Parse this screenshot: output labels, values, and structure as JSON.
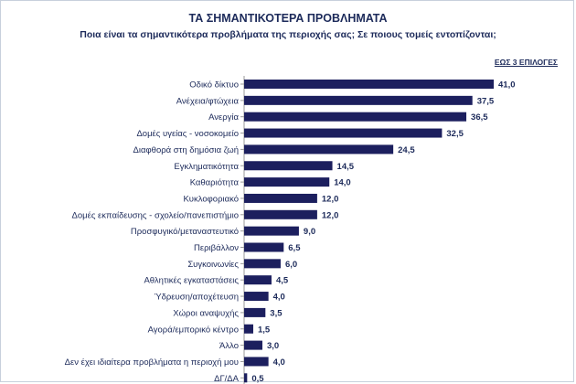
{
  "header": {
    "title": "ΤΑ ΣΗΜΑΝΤΙΚΟΤΕΡΑ ΠΡΟΒΛΗΜΑΤΑ",
    "subtitle": "Ποια είναι τα σημαντικότερα προβλήματα της περιοχής σας; Σε ποιους τομείς εντοπίζονται;",
    "note": "ΕΩΣ 3 ΕΠΙΛΟΓΕΣ"
  },
  "colors": {
    "bar": "#1c1f5e",
    "text": "#1c2a5a",
    "axis": "#9a9a9a"
  },
  "chart_data": {
    "type": "bar",
    "orientation": "horizontal",
    "categories": [
      "Οδικό δίκτυο",
      "Ανέχεια/φτώχεια",
      "Ανεργία",
      "Δομές υγείας - νοσοκομείο",
      "Διαφθορά στη δημόσια ζωή",
      "Εγκληματικότητα",
      "Καθαριότητα",
      "Κυκλοφοριακό",
      "Δομές εκπαίδευσης - σχολείο/πανεπιστήμιο",
      "Προσφυγικό/μεταναστευτικό",
      "Περιβάλλον",
      "Συγκοινωνίες",
      "Αθλητικές εγκαταστάσεις",
      "Ύδρευση/αποχέτευση",
      "Χώροι αναψυχής",
      "Αγορά/εμπορικό κέντρο",
      "Άλλο",
      "Δεν έχει ιδιαίτερα προβλήματα η περιοχή μου",
      "ΔΓ/ΔΑ"
    ],
    "values": [
      41.0,
      37.5,
      36.5,
      32.5,
      24.5,
      14.5,
      14.0,
      12.0,
      12.0,
      9.0,
      6.5,
      6.0,
      4.5,
      4.0,
      3.5,
      1.5,
      3.0,
      4.0,
      0.5
    ],
    "value_labels": [
      "41,0",
      "37,5",
      "36,5",
      "32,5",
      "24,5",
      "14,5",
      "14,0",
      "12,0",
      "12,0",
      "9,0",
      "6,5",
      "6,0",
      "4,5",
      "4,0",
      "3,5",
      "1,5",
      "3,0",
      "4,0",
      "0,5"
    ],
    "xlim": [
      0,
      41
    ],
    "grid": false,
    "legend": "none"
  }
}
